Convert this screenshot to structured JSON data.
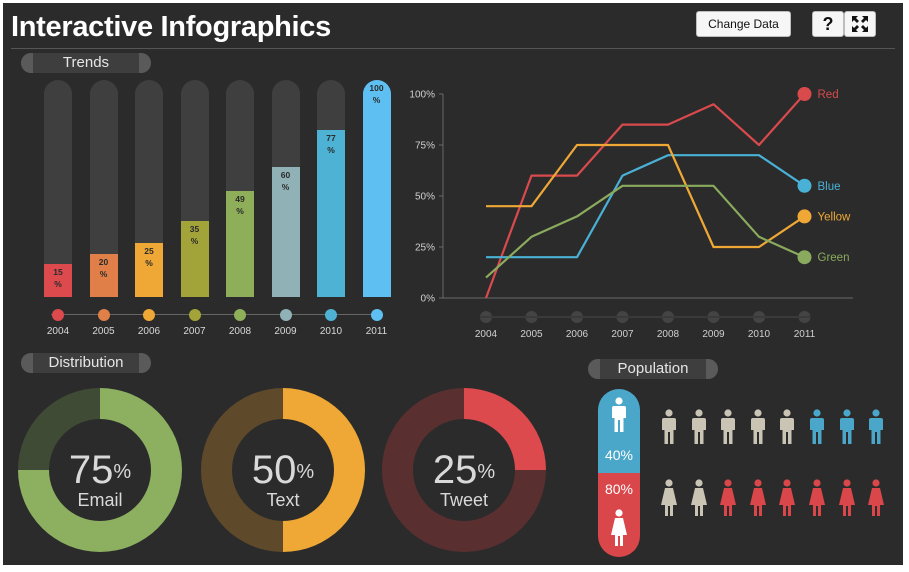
{
  "app": {
    "title": "Interactive Infographics"
  },
  "toolbar": {
    "change_data_label": "Change Data",
    "help_label": "?",
    "fit_icon": "fullscreen-icon"
  },
  "sections": {
    "trends": "Trends",
    "distribution": "Distribution",
    "population": "Population"
  },
  "chart_data": [
    {
      "type": "bar",
      "title": "Trends",
      "categories": [
        "2004",
        "2005",
        "2006",
        "2007",
        "2008",
        "2009",
        "2010",
        "2011"
      ],
      "values": [
        15,
        20,
        25,
        35,
        49,
        60,
        77,
        100
      ],
      "labels": [
        "15 %",
        "20 %",
        "25 %",
        "35 %",
        "49 %",
        "60 %",
        "77 %",
        "100 %"
      ],
      "colors": [
        "#dd4a4d",
        "#e08048",
        "#efa836",
        "#a2a43a",
        "#8eae5a",
        "#90b2b6",
        "#4db2d3",
        "#5ec0f2"
      ],
      "ylim": [
        0,
        100
      ]
    },
    {
      "type": "line",
      "x": [
        "2004",
        "2005",
        "2006",
        "2007",
        "2008",
        "2009",
        "2010",
        "2011"
      ],
      "yticks": [
        "100%",
        "75%",
        "50%",
        "25%",
        "0%"
      ],
      "ylim": [
        0,
        100
      ],
      "series": [
        {
          "name": "Red",
          "color": "#d94a4d",
          "values": [
            0,
            60,
            60,
            85,
            85,
            95,
            75,
            100
          ]
        },
        {
          "name": "Blue",
          "color": "#4ab1d6",
          "values": [
            20,
            20,
            20,
            60,
            70,
            70,
            70,
            55
          ]
        },
        {
          "name": "Yellow",
          "color": "#efa836",
          "values": [
            45,
            45,
            75,
            75,
            75,
            25,
            25,
            40
          ]
        },
        {
          "name": "Green",
          "color": "#8aab5d",
          "values": [
            10,
            30,
            40,
            55,
            55,
            55,
            30,
            20
          ]
        }
      ]
    },
    {
      "type": "pie",
      "title": "Distribution",
      "items": [
        {
          "value": 75,
          "pct_text": "75",
          "pct_sign": "%",
          "label": "Email",
          "color": "#8cb060",
          "rest_color": "#3f4b35"
        },
        {
          "value": 50,
          "pct_text": "50",
          "pct_sign": "%",
          "label": "Text",
          "color": "#efa836",
          "rest_color": "#5e4a2b"
        },
        {
          "value": 25,
          "pct_text": "25",
          "pct_sign": "%",
          "label": "Tweet",
          "color": "#dd4a4d",
          "rest_color": "#5a2f30"
        }
      ]
    }
  ],
  "population": {
    "male_pct": "40%",
    "female_pct": "80%",
    "male_total": 8,
    "male_highlight": 3,
    "female_total": 8,
    "female_highlight": 6,
    "colors": {
      "male": "#4aa7c9",
      "female": "#d9474a",
      "neutral": "#c9c4b4"
    }
  }
}
